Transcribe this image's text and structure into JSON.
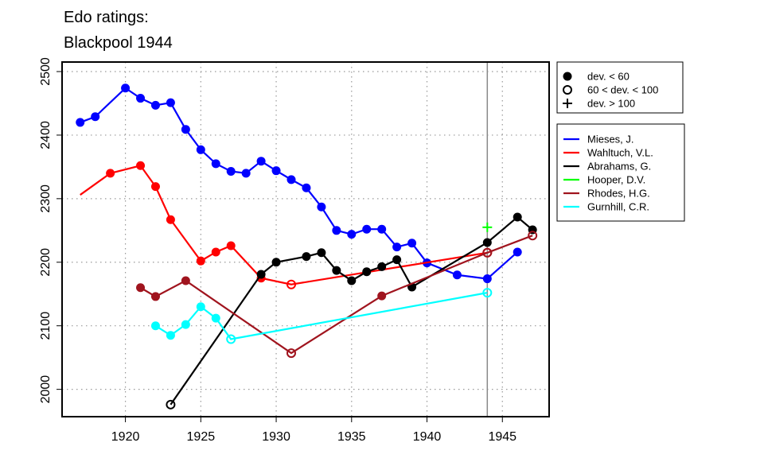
{
  "chart_data": {
    "type": "line",
    "title": [
      "Edo ratings:",
      "Blackpool 1944"
    ],
    "xlabel": "",
    "ylabel": "",
    "xlim": [
      1915.8,
      1948.1
    ],
    "ylim": [
      1957,
      2515
    ],
    "x_ticks": [
      1920,
      1925,
      1930,
      1935,
      1940,
      1945
    ],
    "y_ticks": [
      2000,
      2100,
      2200,
      2300,
      2400,
      2500
    ],
    "grid": true,
    "marker_line_year": 1944,
    "deviation_legend": {
      "position": "top-right-outside",
      "entries": [
        {
          "marker": "filled",
          "label": "dev. < 60"
        },
        {
          "marker": "open",
          "label": "60 < dev. < 100"
        },
        {
          "marker": "plus",
          "label": "dev. > 100"
        }
      ]
    },
    "series": [
      {
        "name": "Mieses, J.",
        "color": "#0000ff",
        "points": [
          [
            1917,
            2420,
            "filled"
          ],
          [
            1918,
            2429,
            "filled"
          ],
          [
            1920,
            2474,
            "filled"
          ],
          [
            1921,
            2458,
            "filled"
          ],
          [
            1922,
            2447,
            "filled"
          ],
          [
            1923,
            2451,
            "filled"
          ],
          [
            1924,
            2409,
            "filled"
          ],
          [
            1925,
            2377,
            "filled"
          ],
          [
            1926,
            2355,
            "filled"
          ],
          [
            1927,
            2343,
            "filled"
          ],
          [
            1928,
            2340,
            "filled"
          ],
          [
            1929,
            2359,
            "filled"
          ],
          [
            1930,
            2344,
            "filled"
          ],
          [
            1931,
            2330,
            "filled"
          ],
          [
            1932,
            2317,
            "filled"
          ],
          [
            1933,
            2287,
            "filled"
          ],
          [
            1934,
            2250,
            "filled"
          ],
          [
            1935,
            2244,
            "filled"
          ],
          [
            1936,
            2252,
            "filled"
          ],
          [
            1937,
            2252,
            "filled"
          ],
          [
            1938,
            2224,
            "filled"
          ],
          [
            1939,
            2230,
            "filled"
          ],
          [
            1940,
            2199,
            "filled"
          ],
          [
            1942,
            2180,
            "filled"
          ],
          [
            1944,
            2174,
            "filled"
          ],
          [
            1946,
            2216,
            "filled"
          ]
        ]
      },
      {
        "name": "Wahltuch, V.L.",
        "color": "#ff0000",
        "points": [
          [
            1917,
            2306,
            "none"
          ],
          [
            1919,
            2340,
            "filled"
          ],
          [
            1921,
            2352,
            "filled"
          ],
          [
            1922,
            2319,
            "filled"
          ],
          [
            1923,
            2267,
            "filled"
          ],
          [
            1925,
            2202,
            "filled"
          ],
          [
            1926,
            2216,
            "filled"
          ],
          [
            1927,
            2226,
            "filled"
          ],
          [
            1929,
            2175,
            "filled"
          ],
          [
            1931,
            2165,
            "open"
          ],
          [
            1944,
            2215,
            "open"
          ]
        ]
      },
      {
        "name": "Abrahams, G.",
        "color": "#000000",
        "points": [
          [
            1923,
            1976,
            "open"
          ],
          [
            1929,
            2181,
            "filled"
          ],
          [
            1930,
            2200,
            "filled"
          ],
          [
            1932,
            2209,
            "filled"
          ],
          [
            1933,
            2215,
            "filled"
          ],
          [
            1934,
            2187,
            "filled"
          ],
          [
            1935,
            2171,
            "filled"
          ],
          [
            1936,
            2185,
            "filled"
          ],
          [
            1937,
            2193,
            "filled"
          ],
          [
            1938,
            2204,
            "filled"
          ],
          [
            1939,
            2161,
            "filled"
          ],
          [
            1944,
            2231,
            "filled"
          ],
          [
            1946,
            2271,
            "filled"
          ],
          [
            1947,
            2251,
            "filled"
          ]
        ]
      },
      {
        "name": "Hooper, D.V.",
        "color": "#00ff00",
        "points": [
          [
            1944,
            2255,
            "plus"
          ]
        ]
      },
      {
        "name": "Rhodes, H.G.",
        "color": "#a0141e",
        "points": [
          [
            1921,
            2160,
            "filled"
          ],
          [
            1922,
            2146,
            "filled"
          ],
          [
            1924,
            2171,
            "filled"
          ],
          [
            1931,
            2057,
            "open"
          ],
          [
            1937,
            2147,
            "filled"
          ],
          [
            1944,
            2215,
            "open"
          ],
          [
            1947,
            2242,
            "open"
          ]
        ]
      },
      {
        "name": "Gurnhill, C.R.",
        "color": "#00ffff",
        "points": [
          [
            1922,
            2100,
            "filled"
          ],
          [
            1923,
            2085,
            "filled"
          ],
          [
            1924,
            2102,
            "filled"
          ],
          [
            1925,
            2130,
            "filled"
          ],
          [
            1926,
            2112,
            "filled"
          ],
          [
            1927,
            2079,
            "open"
          ],
          [
            1944,
            2152,
            "open"
          ]
        ]
      }
    ]
  }
}
